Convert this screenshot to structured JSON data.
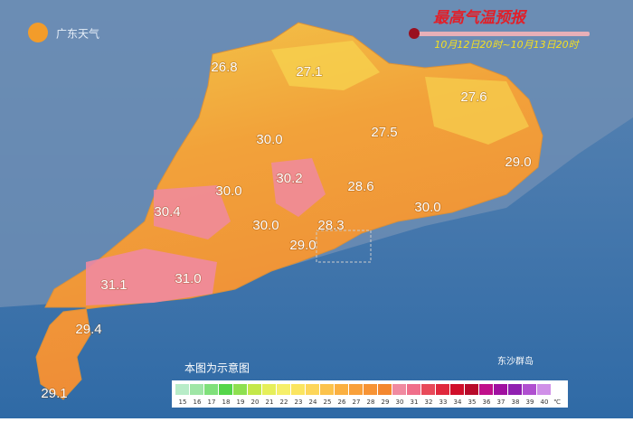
{
  "logo": "广东天气",
  "title": "最高气温预报",
  "subtitle": "10月12日20时~10月13日20时",
  "note": "本图为示意图",
  "island_label": "东沙群岛",
  "cities": [
    "26.8",
    "27.1",
    "27.6",
    "30.0",
    "27.5",
    "29.0",
    "30.2",
    "28.6",
    "30.0",
    "30.4",
    "30.0",
    "30.0",
    "28.3",
    "29.0",
    "31.1",
    "31.0",
    "29.4",
    "29.1"
  ],
  "legend": {
    "labels": [
      "15",
      "16",
      "17",
      "18",
      "19",
      "20",
      "21",
      "22",
      "23",
      "24",
      "25",
      "26",
      "27",
      "28",
      "29",
      "30",
      "31",
      "32",
      "33",
      "34",
      "35",
      "36",
      "37",
      "38",
      "39",
      "40"
    ],
    "colors": [
      "#b8ecc8",
      "#9fe6a6",
      "#7fe07a",
      "#55d64a",
      "#8ee050",
      "#c4e84a",
      "#e6ef5a",
      "#f6ef6a",
      "#fbe560",
      "#fdd65a",
      "#fcc34c",
      "#fbb040",
      "#f9a03a",
      "#f79334",
      "#f4872e",
      "#f08aa0",
      "#f06f8a",
      "#e84a5a",
      "#e0283c",
      "#d00f2a",
      "#b80a2a",
      "#c0108a",
      "#a010a0",
      "#9020b0",
      "#b050d0",
      "#d090e8"
    ],
    "unit": "℃"
  }
}
